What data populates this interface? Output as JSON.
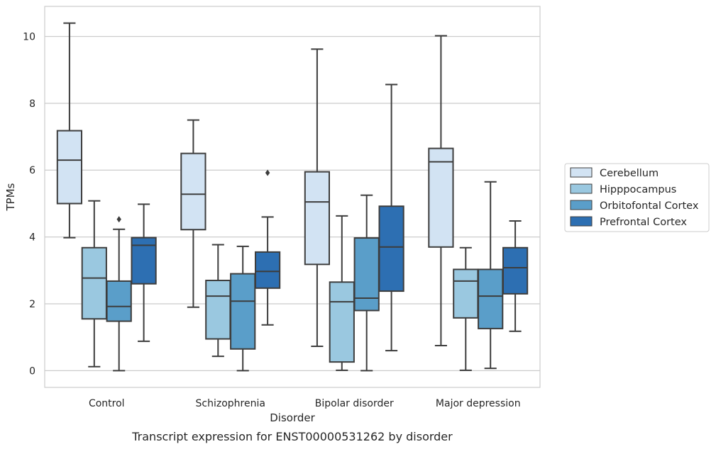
{
  "chart_data": {
    "type": "box",
    "caption": "Transcript expression for ENST00000531262 by disorder",
    "xlabel": "Disorder",
    "ylabel": "TPMs",
    "ylim": [
      -0.5,
      10.9
    ],
    "yticks": [
      0,
      2,
      4,
      6,
      8,
      10
    ],
    "grid": "horizontal",
    "legend_position": "right",
    "categories": [
      "Control",
      "Schizophrenia",
      "Bipolar disorder",
      "Major depression"
    ],
    "series": [
      {
        "name": "Cerebellum",
        "color": "#d2e3f3",
        "boxes": [
          {
            "whisker_low": 3.98,
            "q1": 5.0,
            "median": 6.3,
            "q3": 7.18,
            "whisker_high": 10.4,
            "outliers": []
          },
          {
            "whisker_low": 1.9,
            "q1": 4.22,
            "median": 5.28,
            "q3": 6.5,
            "whisker_high": 7.5,
            "outliers": []
          },
          {
            "whisker_low": 0.73,
            "q1": 3.18,
            "median": 5.05,
            "q3": 5.95,
            "whisker_high": 9.62,
            "outliers": []
          },
          {
            "whisker_low": 0.75,
            "q1": 3.7,
            "median": 6.25,
            "q3": 6.65,
            "whisker_high": 10.02,
            "outliers": []
          }
        ]
      },
      {
        "name": "Hipppocampus",
        "color": "#9ac8e0",
        "boxes": [
          {
            "whisker_low": 0.12,
            "q1": 1.55,
            "median": 2.77,
            "q3": 3.68,
            "whisker_high": 5.08,
            "outliers": []
          },
          {
            "whisker_low": 0.43,
            "q1": 0.95,
            "median": 2.23,
            "q3": 2.7,
            "whisker_high": 3.77,
            "outliers": []
          },
          {
            "whisker_low": 0.01,
            "q1": 0.26,
            "median": 2.06,
            "q3": 2.65,
            "whisker_high": 4.63,
            "outliers": []
          },
          {
            "whisker_low": 0.01,
            "q1": 1.58,
            "median": 2.68,
            "q3": 3.03,
            "whisker_high": 3.68,
            "outliers": []
          }
        ]
      },
      {
        "name": "Orbitofontal Cortex",
        "color": "#5a9ec9",
        "boxes": [
          {
            "whisker_low": 0.0,
            "q1": 1.48,
            "median": 1.92,
            "q3": 2.68,
            "whisker_high": 4.23,
            "outliers": [
              4.53
            ]
          },
          {
            "whisker_low": 0.0,
            "q1": 0.65,
            "median": 2.08,
            "q3": 2.9,
            "whisker_high": 3.72,
            "outliers": []
          },
          {
            "whisker_low": 0.0,
            "q1": 1.8,
            "median": 2.17,
            "q3": 3.97,
            "whisker_high": 5.25,
            "outliers": []
          },
          {
            "whisker_low": 0.07,
            "q1": 1.26,
            "median": 2.23,
            "q3": 3.03,
            "whisker_high": 5.65,
            "outliers": []
          }
        ]
      },
      {
        "name": "Prefrontal Cortex",
        "color": "#2d6fb2",
        "boxes": [
          {
            "whisker_low": 0.88,
            "q1": 2.6,
            "median": 3.75,
            "q3": 3.98,
            "whisker_high": 4.98,
            "outliers": []
          },
          {
            "whisker_low": 1.37,
            "q1": 2.47,
            "median": 2.97,
            "q3": 3.55,
            "whisker_high": 4.6,
            "outliers": [
              5.92
            ]
          },
          {
            "whisker_low": 0.6,
            "q1": 2.38,
            "median": 3.7,
            "q3": 4.92,
            "whisker_high": 8.56,
            "outliers": []
          },
          {
            "whisker_low": 1.18,
            "q1": 2.3,
            "median": 3.08,
            "q3": 3.68,
            "whisker_high": 4.48,
            "outliers": []
          }
        ]
      }
    ]
  }
}
